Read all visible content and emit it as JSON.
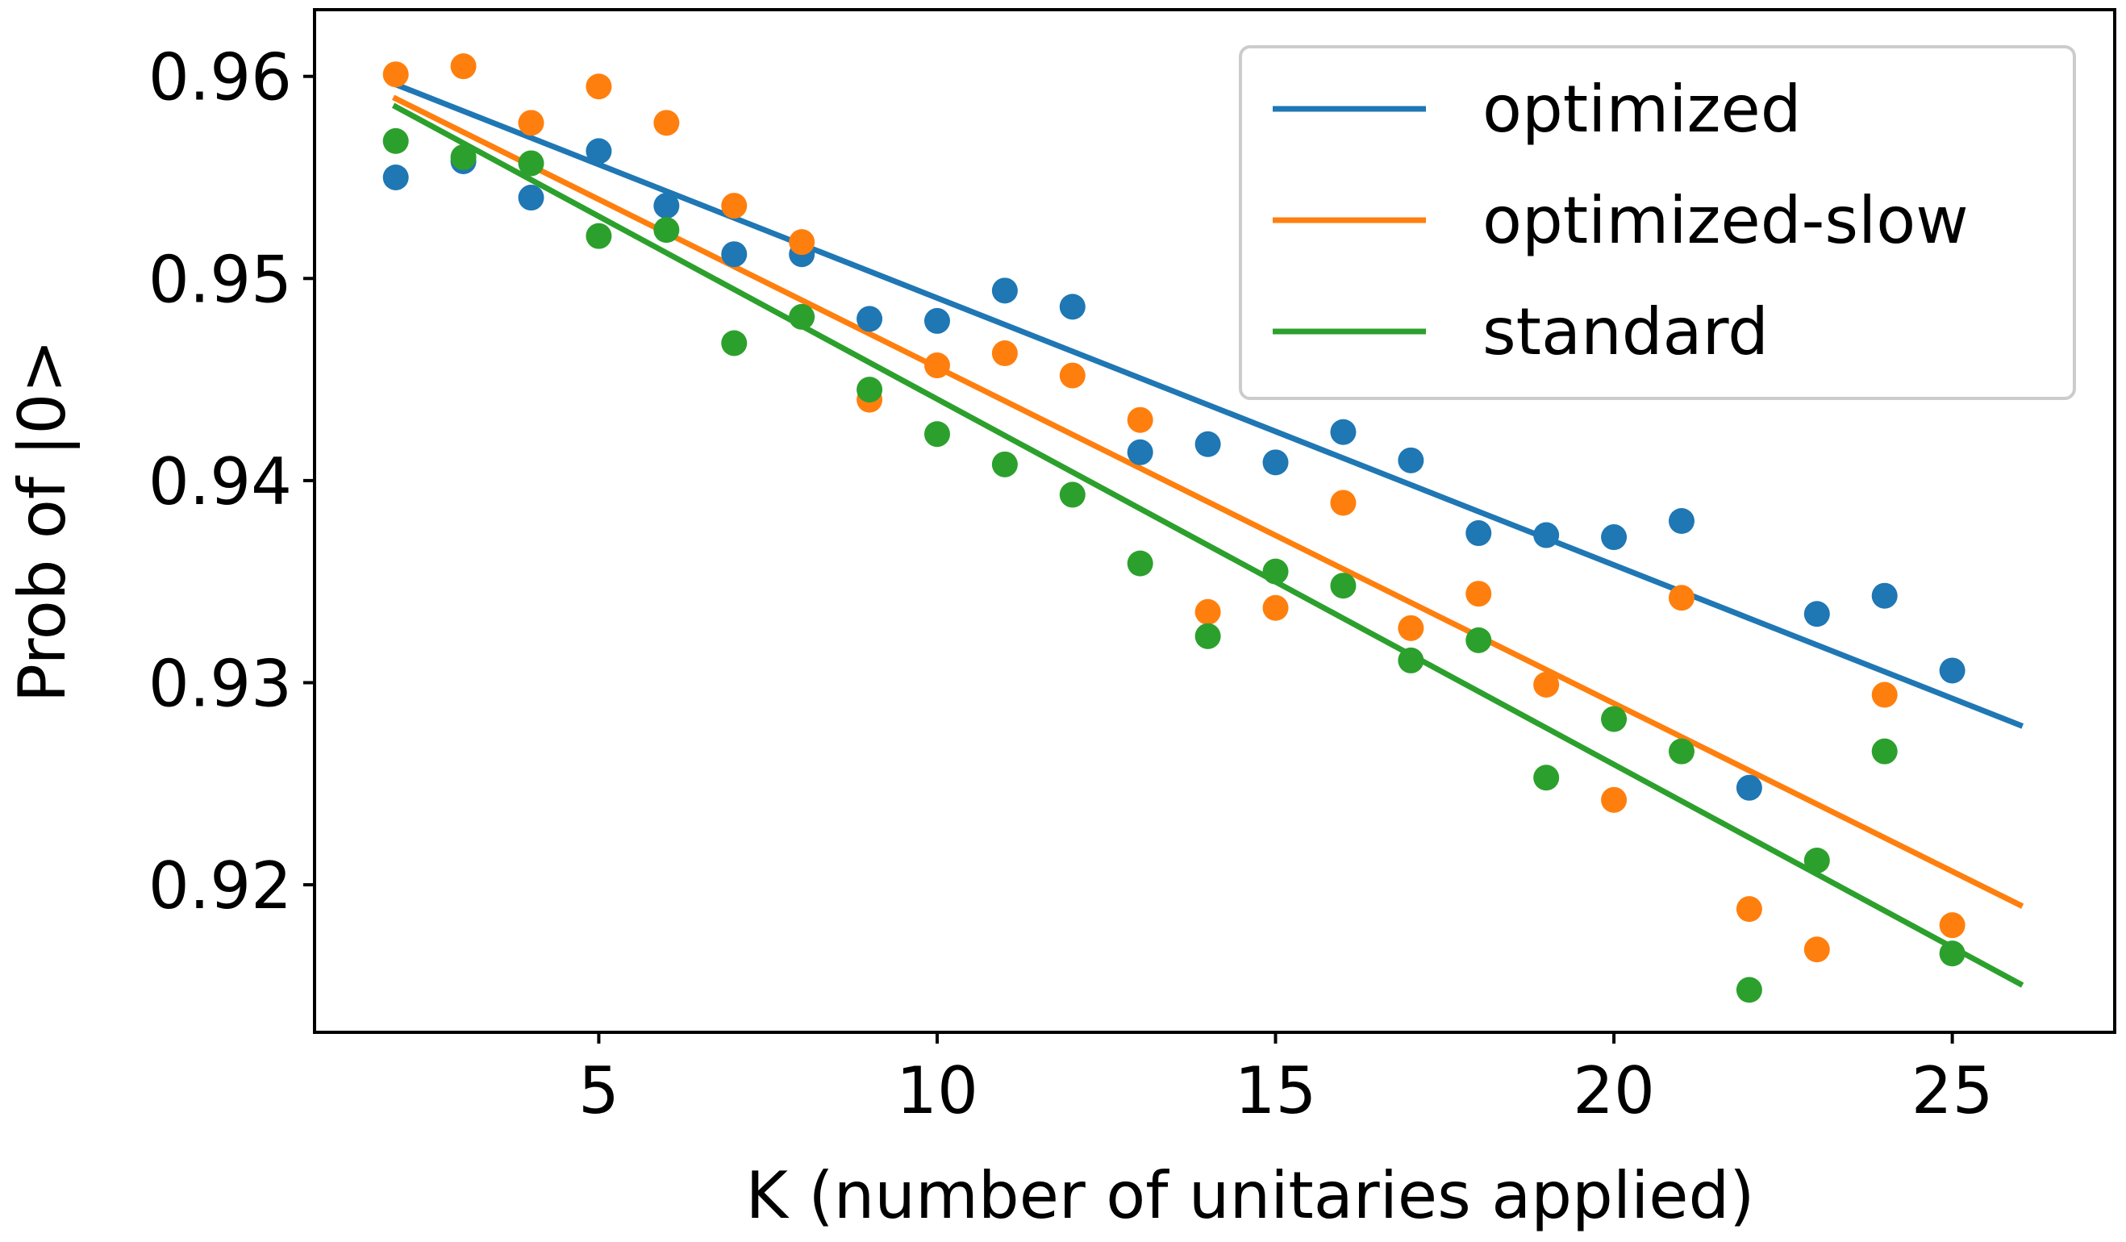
{
  "chart_data": {
    "type": "scatter",
    "xlabel": "K (number of unitaries applied)",
    "ylabel": "Prob of |0>",
    "xlim": [
      0.8,
      27.4
    ],
    "ylim": [
      0.9127,
      0.9633
    ],
    "xticks": [
      5,
      10,
      15,
      20,
      25
    ],
    "xtick_labels": [
      "5",
      "10",
      "15",
      "20",
      "25"
    ],
    "yticks": [
      0.92,
      0.93,
      0.94,
      0.95,
      0.96
    ],
    "ytick_labels": [
      "0.92",
      "0.93",
      "0.94",
      "0.95",
      "0.96"
    ],
    "grid": false,
    "legend_position": "top-right",
    "x": [
      2,
      3,
      4,
      5,
      6,
      7,
      8,
      9,
      10,
      11,
      12,
      13,
      14,
      15,
      16,
      17,
      18,
      19,
      20,
      21,
      22,
      23,
      24,
      25
    ],
    "series": [
      {
        "name": "optimized",
        "color": "#1f77b4",
        "values": [
          0.955,
          0.9558,
          0.954,
          0.9563,
          0.9536,
          0.9512,
          0.9512,
          0.948,
          0.9479,
          0.9494,
          0.9486,
          0.9414,
          0.9418,
          0.9409,
          0.9424,
          0.941,
          0.9374,
          0.9373,
          0.9372,
          0.938,
          0.9248,
          0.9334,
          0.9343,
          0.9306
        ],
        "fit": {
          "x": [
            2,
            26
          ],
          "y": [
            0.9596,
            0.9279
          ]
        }
      },
      {
        "name": "optimized-slow",
        "color": "#ff7f0e",
        "values": [
          0.9601,
          0.9605,
          0.9577,
          0.9595,
          0.9577,
          0.9536,
          0.9518,
          0.944,
          0.9457,
          0.9463,
          0.9452,
          0.943,
          0.9335,
          0.9337,
          0.9389,
          0.9327,
          0.9344,
          0.9299,
          0.9242,
          0.9342,
          0.9188,
          0.9168,
          0.9294,
          0.918
        ],
        "fit": {
          "x": [
            2,
            26
          ],
          "y": [
            0.9589,
            0.919
          ]
        }
      },
      {
        "name": "standard",
        "color": "#2ca02c",
        "values": [
          0.9568,
          0.956,
          0.9557,
          0.9521,
          0.9524,
          0.9468,
          0.9481,
          0.9445,
          0.9423,
          0.9408,
          0.9393,
          0.9359,
          0.9323,
          0.9355,
          0.9348,
          0.9311,
          0.9321,
          0.9253,
          0.9282,
          0.9266,
          0.9148,
          0.9212,
          0.9266,
          0.9166
        ],
        "fit": {
          "x": [
            2,
            26
          ],
          "y": [
            0.9585,
            0.9151
          ]
        }
      }
    ]
  }
}
